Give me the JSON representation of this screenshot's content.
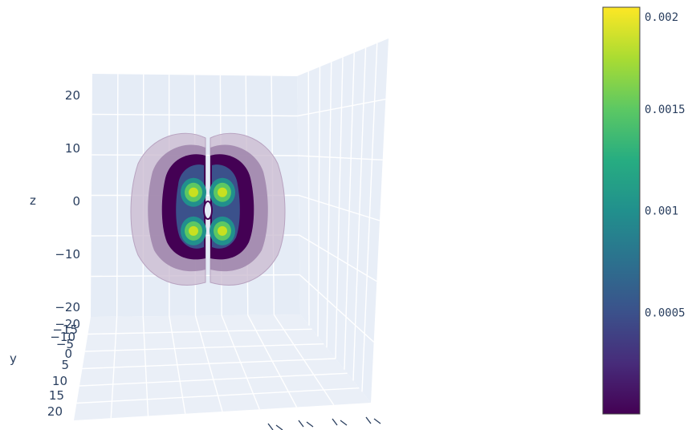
{
  "chart_data": {
    "type": "isosurface-3d",
    "axes": {
      "x": {
        "label": "",
        "range": [
          -20,
          20
        ],
        "ticks": [
          -20,
          -15,
          -10,
          -5,
          0,
          5,
          10,
          15,
          20
        ]
      },
      "y": {
        "label": "y",
        "range": [
          -20,
          20
        ],
        "ticks": [
          -20,
          -15,
          -10,
          -5,
          0,
          5,
          10,
          15,
          20
        ]
      },
      "z": {
        "label": "z",
        "range": [
          -25,
          25
        ],
        "ticks": [
          -20,
          -10,
          0,
          10,
          20
        ]
      }
    },
    "grid": true,
    "colorscale": "viridis",
    "colorscale_stops": [
      "#440154",
      "#472c7a",
      "#3b518b",
      "#2c718e",
      "#21908d",
      "#27ad81",
      "#5cc863",
      "#aadc32",
      "#fde725"
    ],
    "value_range": [
      0,
      0.002
    ],
    "colorbar": {
      "placement": "right",
      "ticks": [
        0.0005,
        0.001,
        0.0015,
        0.002
      ],
      "tick_labels": [
        "0.0005",
        "0.001",
        "0.0015",
        "0.002"
      ]
    },
    "lobe_maxima": [
      {
        "x": -5,
        "z": 6
      },
      {
        "x": 5,
        "z": 6
      },
      {
        "x": -5,
        "z": -7
      },
      {
        "x": 5,
        "z": -7
      }
    ],
    "peak_value": 0.0018,
    "outer_extent": {
      "x": [
        -20,
        20
      ],
      "z": [
        -20,
        17
      ]
    }
  }
}
